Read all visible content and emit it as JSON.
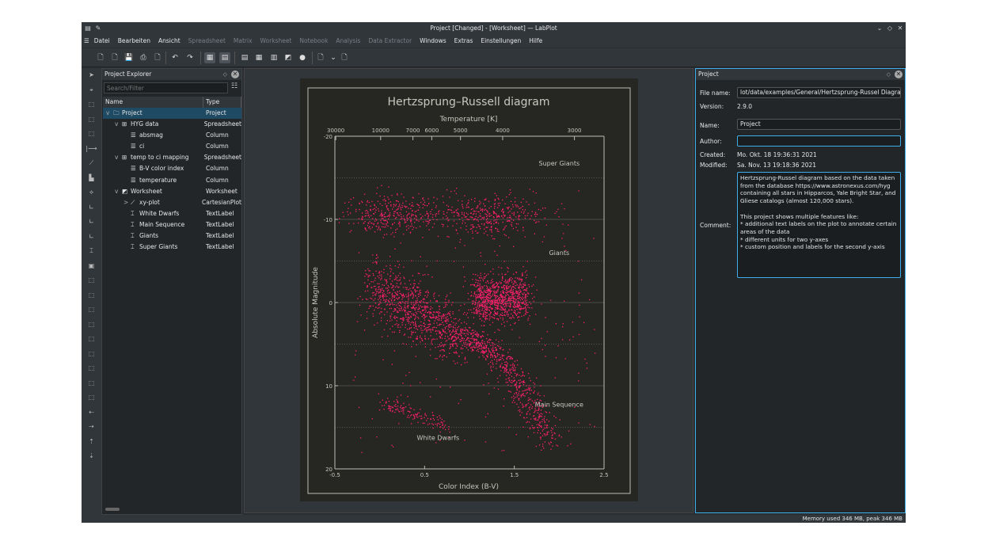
{
  "window": {
    "title": "Project [Changed] - [Worksheet] — LabPlot"
  },
  "menu": [
    {
      "label": "Datei",
      "enabled": true
    },
    {
      "label": "Bearbeiten",
      "enabled": true
    },
    {
      "label": "Ansicht",
      "enabled": true
    },
    {
      "label": "Spreadsheet",
      "enabled": false
    },
    {
      "label": "Matrix",
      "enabled": false
    },
    {
      "label": "Worksheet",
      "enabled": false
    },
    {
      "label": "Notebook",
      "enabled": false
    },
    {
      "label": "Analysis",
      "enabled": false
    },
    {
      "label": "Data Extractor",
      "enabled": false
    },
    {
      "label": "Windows",
      "enabled": true
    },
    {
      "label": "Extras",
      "enabled": true
    },
    {
      "label": "Einstellungen",
      "enabled": true
    },
    {
      "label": "Hilfe",
      "enabled": true
    }
  ],
  "explorer": {
    "title": "Project Explorer",
    "search_placeholder": "Search/Filter",
    "col_name": "Name",
    "col_type": "Type",
    "rows": [
      {
        "name": "Project",
        "type": "Project",
        "level": 0,
        "icon": "folder-icon",
        "exp": "v",
        "selected": true
      },
      {
        "name": "HYG data",
        "type": "Spreadsheet",
        "level": 1,
        "icon": "spreadsheet-icon",
        "exp": "v"
      },
      {
        "name": "absmag",
        "type": "Column",
        "level": 2,
        "icon": "column-icon"
      },
      {
        "name": "ci",
        "type": "Column",
        "level": 2,
        "icon": "column-icon"
      },
      {
        "name": "temp to ci mapping",
        "type": "Spreadsheet",
        "level": 1,
        "icon": "spreadsheet-icon",
        "exp": "v"
      },
      {
        "name": "B-V color index",
        "type": "Column",
        "level": 2,
        "icon": "column-icon"
      },
      {
        "name": "temperature",
        "type": "Column",
        "level": 2,
        "icon": "column-icon"
      },
      {
        "name": "Worksheet",
        "type": "Worksheet",
        "level": 1,
        "icon": "worksheet-icon",
        "exp": "v"
      },
      {
        "name": "xy-plot",
        "type": "CartesianPlot",
        "level": 2,
        "icon": "plot-icon",
        "exp": ">"
      },
      {
        "name": "White Dwarfs",
        "type": "TextLabel",
        "level": 2,
        "icon": "textlabel-icon"
      },
      {
        "name": "Main Sequence",
        "type": "TextLabel",
        "level": 2,
        "icon": "textlabel-icon"
      },
      {
        "name": "Giants",
        "type": "TextLabel",
        "level": 2,
        "icon": "textlabel-icon"
      },
      {
        "name": "Super Giants",
        "type": "TextLabel",
        "level": 2,
        "icon": "textlabel-icon"
      }
    ]
  },
  "properties": {
    "title": "Project",
    "file_name_label": "File name:",
    "file_name": "lot/data/examples/General/Hertzsprung-Russel Diagram.lml",
    "version_label": "Version:",
    "version": "2.9.0",
    "name_label": "Name:",
    "name": "Project",
    "author_label": "Author:",
    "author": "",
    "created_label": "Created:",
    "created": "Mo. Okt. 18 19:36:31 2021",
    "modified_label": "Modified:",
    "modified": "Sa. Nov. 13 19:18:36 2021",
    "comment_label": "Comment:",
    "comment": "Hertzsprung-Russel diagram based on the data taken from the database https://www.astronexus.com/hyg\ncontaining all stars in Hipparcos, Yale Bright Star, and Gliese catalogs (almost 120,000 stars).\n\nThis project shows multiple features like:\n* additional text labels on the plot to annotate certain areas of the data\n* different units for two y-axes\n* custom position and labels for the second y-axis"
  },
  "status": "Memory used 346 MB, peak 346 MB",
  "chart_data": {
    "type": "scatter",
    "title": "Hertzsprung–Russell diagram",
    "xlabel": "Color Index (B-V)",
    "ylabel": "Absolute Magnitude",
    "x2label": "Temperature [K]",
    "xlim": [
      -0.5,
      2.5
    ],
    "ylim": [
      -20,
      20
    ],
    "y_inverted": true,
    "xticks": [
      "-0.5",
      "0.5",
      "1.5",
      "2.5"
    ],
    "xtick_values": [
      -0.5,
      0.5,
      1.5,
      2.5
    ],
    "yticks": [
      "-20",
      "-10",
      "0",
      "10",
      "20"
    ],
    "ytick_values": [
      -20,
      -10,
      0,
      10,
      20
    ],
    "x2ticks": [
      {
        "label": "30000",
        "ci": -0.49
      },
      {
        "label": "10000",
        "ci": 0.01
      },
      {
        "label": "7000",
        "ci": 0.37
      },
      {
        "label": "6000",
        "ci": 0.58
      },
      {
        "label": "5000",
        "ci": 0.9
      },
      {
        "label": "4000",
        "ci": 1.37
      },
      {
        "label": "3000",
        "ci": 2.17
      }
    ],
    "grid": true,
    "point_color": "#ff1f6e",
    "background": "#262622",
    "annotations": [
      {
        "text": "Super Giants",
        "x": 2.0,
        "y": -16.5
      },
      {
        "text": "Giants",
        "x": 2.0,
        "y": -5.7
      },
      {
        "text": "Main Sequence",
        "x": 2.0,
        "y": 12.5
      },
      {
        "text": "White Dwarfs",
        "x": 0.65,
        "y": 16.5
      }
    ],
    "clusters": [
      {
        "region": "Super Giants",
        "x": [
          0.0,
          1.8
        ],
        "y": -11
      },
      {
        "region": "Giants",
        "x": [
          1.0,
          1.6
        ],
        "y": -0.5
      },
      {
        "region": "Main Sequence",
        "x": [
          -0.1,
          1.9
        ],
        "y": [
          -2,
          15
        ]
      },
      {
        "region": "White Dwarfs",
        "x": [
          0.1,
          0.8
        ],
        "y": [
          12,
          15
        ]
      }
    ]
  }
}
